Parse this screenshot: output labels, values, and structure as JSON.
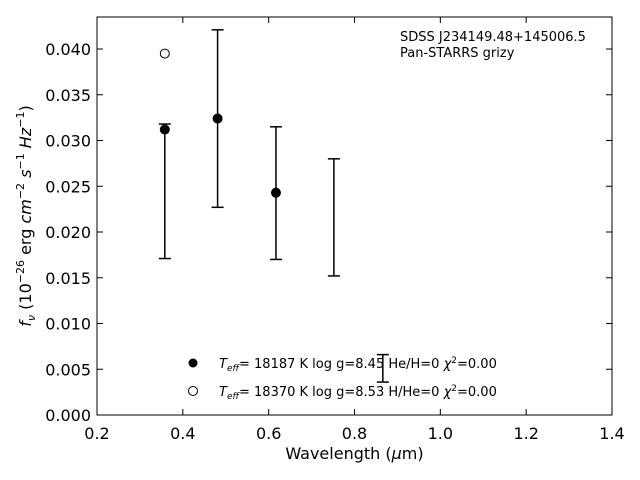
{
  "chart_data": {
    "type": "scatter",
    "annotations": [
      "SDSS J234149.48+145006.5",
      "Pan-STARRS grizy"
    ],
    "xlabel": "Wavelength (μm)",
    "ylabel": "f_ν (10^−26 erg cm^−2 s^−1 Hz^−1)",
    "xlim": [
      0.2,
      1.4
    ],
    "ylim": [
      0.0,
      0.0435
    ],
    "xticks": [
      0.2,
      0.4,
      0.6,
      0.8,
      1.0,
      1.2,
      1.4
    ],
    "xtick_labels": [
      "0.2",
      "0.4",
      "0.6",
      "0.8",
      "1.0",
      "1.2",
      "1.4"
    ],
    "yticks": [
      0.0,
      0.005,
      0.01,
      0.015,
      0.02,
      0.025,
      0.03,
      0.035,
      0.04
    ],
    "ytick_labels": [
      "0.000",
      "0.005",
      "0.010",
      "0.015",
      "0.020",
      "0.025",
      "0.030",
      "0.035",
      "0.040"
    ],
    "grid": false,
    "legend_position": "lower-center",
    "observed": [
      {
        "x": 0.358,
        "low": 0.0171,
        "high": 0.0318
      },
      {
        "x": 0.481,
        "low": 0.0227,
        "high": 0.0421
      },
      {
        "x": 0.617,
        "low": 0.017,
        "high": 0.0315
      },
      {
        "x": 0.752,
        "low": 0.0152,
        "high": 0.028
      },
      {
        "x": 0.866,
        "low": 0.0036,
        "high": 0.0066
      }
    ],
    "series": [
      {
        "name": "T_eff= 18187 K  log g=8.45  He/H=0  χ²=0.00",
        "marker": "filled-circle",
        "points": [
          [
            0.358,
            0.0312
          ],
          [
            0.481,
            0.0324
          ],
          [
            0.617,
            0.0243
          ]
        ]
      },
      {
        "name": "T_eff= 18370 K  log g=8.53  H/He=0  χ²=0.00",
        "marker": "open-circle",
        "points": [
          [
            0.358,
            0.0395
          ]
        ]
      }
    ]
  }
}
